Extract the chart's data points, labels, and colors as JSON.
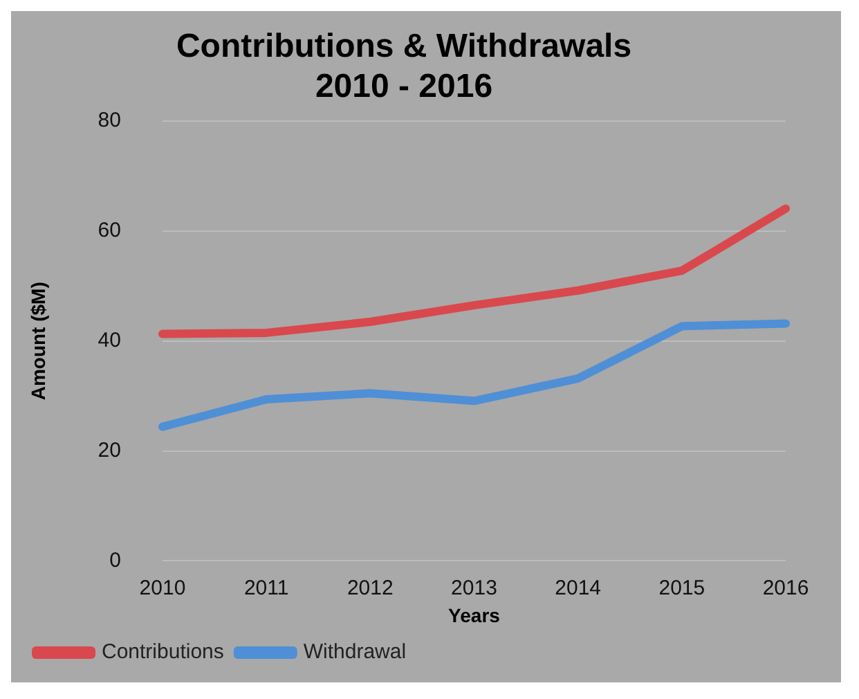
{
  "chart_data": {
    "type": "line",
    "title": [
      "Contributions & Withdrawals",
      "2010 - 2016"
    ],
    "xlabel": "Years",
    "ylabel": "Amount ($M)",
    "categories": [
      "2010",
      "2011",
      "2012",
      "2013",
      "2014",
      "2015",
      "2016"
    ],
    "series": [
      {
        "name": "Contributions",
        "color": "#d9484d",
        "values": [
          41.3,
          41.5,
          43.5,
          46.5,
          49.2,
          52.8,
          64.1
        ]
      },
      {
        "name": "Withdrawal",
        "color": "#4f8fd6",
        "values": [
          24.4,
          29.4,
          30.5,
          29.1,
          33.2,
          42.7,
          43.2
        ]
      }
    ],
    "ylim": [
      0,
      80
    ],
    "yticks": [
      0,
      20,
      40,
      60,
      80
    ],
    "grid": "y",
    "legend": "bottom left",
    "marker": "none",
    "line_style": "solid"
  }
}
